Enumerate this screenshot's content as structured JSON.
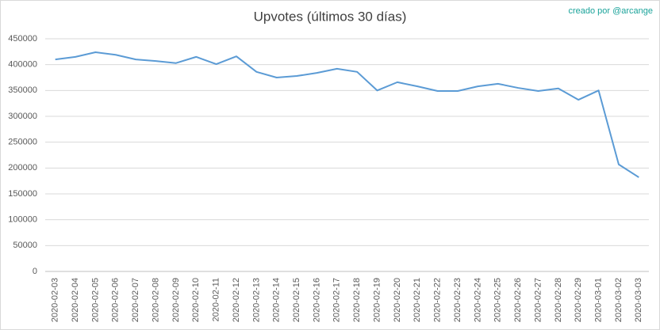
{
  "chart_data": {
    "type": "line",
    "title": "Upvotes (últimos 30 días)",
    "credit": "creado por @arcange",
    "categories": [
      "2020-02-03",
      "2020-02-04",
      "2020-02-05",
      "2020-02-06",
      "2020-02-07",
      "2020-02-08",
      "2020-02-09",
      "2020-02-10",
      "2020-02-11",
      "2020-02-12",
      "2020-02-13",
      "2020-02-14",
      "2020-02-15",
      "2020-02-16",
      "2020-02-17",
      "2020-02-18",
      "2020-02-19",
      "2020-02-20",
      "2020-02-21",
      "2020-02-22",
      "2020-02-23",
      "2020-02-24",
      "2020-02-25",
      "2020-02-26",
      "2020-02-27",
      "2020-02-28",
      "2020-02-29",
      "2020-03-01",
      "2020-03-02",
      "2020-03-03"
    ],
    "values": [
      410000,
      415000,
      424000,
      419000,
      410000,
      407000,
      403000,
      415000,
      401000,
      416000,
      386000,
      375000,
      378000,
      384000,
      392000,
      386000,
      350000,
      366000,
      358000,
      349000,
      349000,
      358000,
      363000,
      355000,
      349000,
      354000,
      332000,
      350000,
      207000,
      182000
    ],
    "color": "#5b9bd5",
    "ylim": [
      0,
      450000
    ],
    "yticks": [
      0,
      50000,
      100000,
      150000,
      200000,
      250000,
      300000,
      350000,
      400000,
      450000
    ],
    "grid": true
  }
}
